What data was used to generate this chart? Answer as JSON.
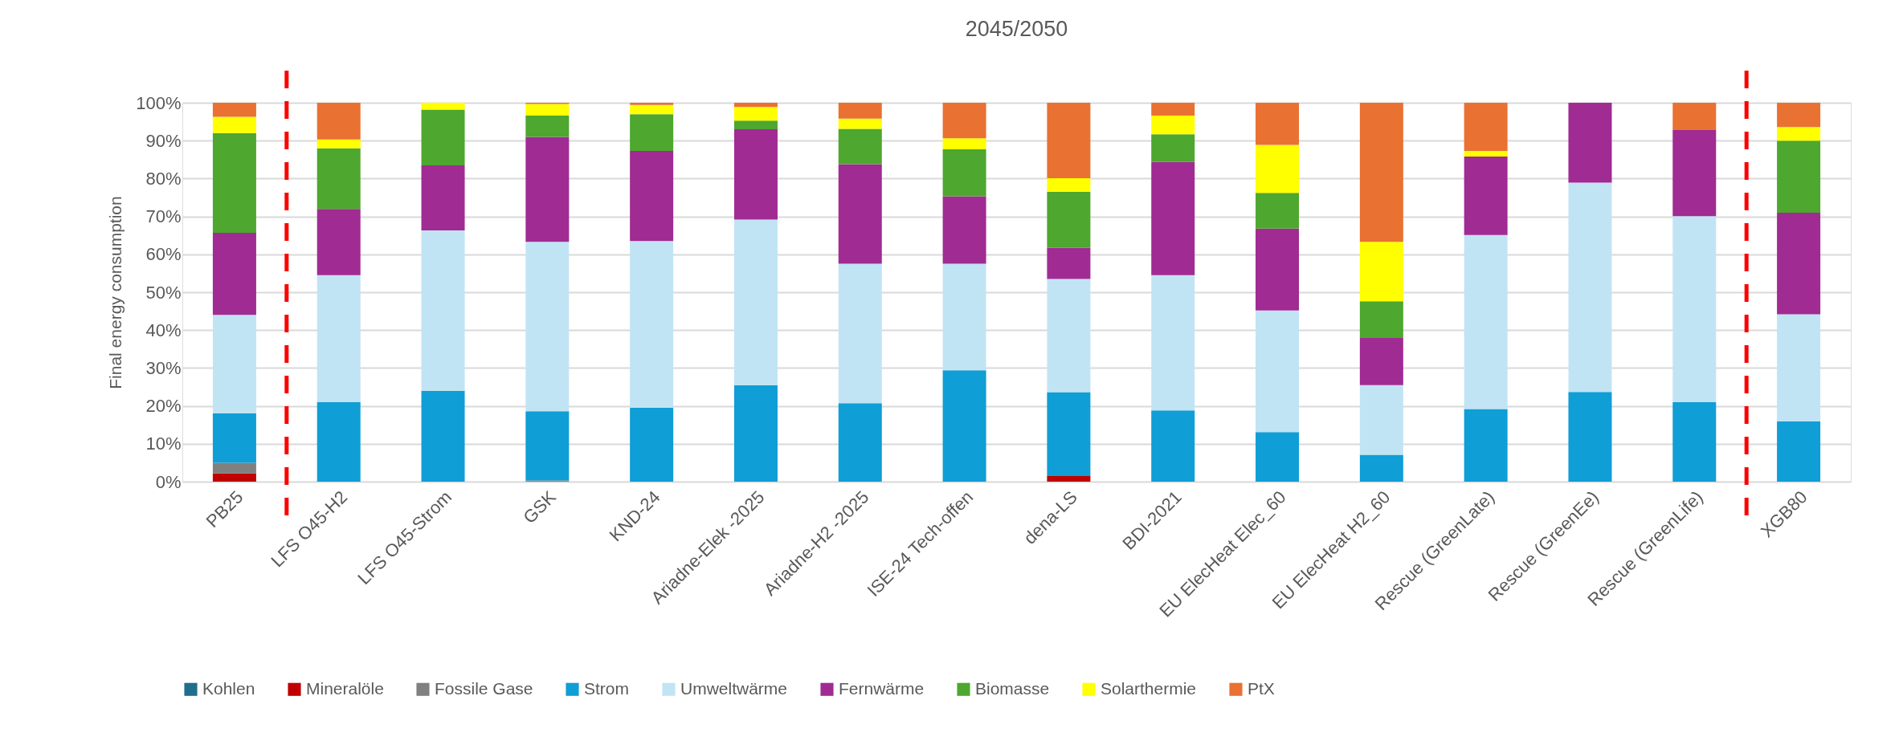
{
  "chart_data": {
    "type": "bar",
    "stacked": true,
    "title": "2045/2050",
    "ylabel": "Final energy consumption",
    "categories": [
      "PB25",
      "LFS O45-H2",
      "LFS O45-Strom",
      "GSK",
      "KND-24",
      "Ariadne-Elek -2025",
      "Ariadne-H2 -2025",
      "ISE-24 Tech-offen",
      "dena-LS",
      "BDI-2021",
      "EU ElecHeat Elec_60",
      "EU ElecHeat H2_60",
      "Rescue (GreenLate)",
      "Rescue (GreenEe)",
      "Rescue (GreenLife)",
      "XGB80"
    ],
    "series": [
      {
        "name": "Kohlen",
        "color": "#1f6e8c",
        "values": [
          0,
          0,
          0,
          0,
          0,
          0,
          0,
          0,
          0,
          0,
          0,
          0,
          0,
          0,
          0,
          0
        ]
      },
      {
        "name": "Mineralöle",
        "color": "#c00000",
        "values": [
          2.2,
          0,
          0,
          0,
          0,
          0,
          0,
          0,
          1.5,
          0,
          0,
          0,
          0,
          0,
          0,
          0
        ]
      },
      {
        "name": "Fossile Gase",
        "color": "#808080",
        "values": [
          2.8,
          0,
          0,
          0.3,
          0,
          0,
          0,
          0,
          0,
          0,
          0,
          0,
          0,
          0,
          0,
          0
        ]
      },
      {
        "name": "Strom",
        "color": "#0f9ed5",
        "values": [
          13,
          21,
          24,
          18.3,
          19.5,
          25.5,
          20.7,
          29.4,
          22.1,
          18.8,
          13.1,
          7.1,
          19.2,
          23.7,
          21,
          15.9
        ]
      },
      {
        "name": "Umweltwärme",
        "color": "#c1e4f5",
        "values": [
          26,
          33.5,
          42.3,
          44.7,
          44,
          43.7,
          36.8,
          28.1,
          29.9,
          35.7,
          32.1,
          18.4,
          45.9,
          55.2,
          49.1,
          28.3
        ]
      },
      {
        "name": "Fernwärme",
        "color": "#a02b93",
        "values": [
          21.7,
          17.5,
          17.2,
          27.7,
          23.8,
          23.8,
          26.3,
          17.8,
          8.2,
          29.9,
          21.6,
          12.4,
          20.7,
          21.1,
          22.7,
          26.8
        ]
      },
      {
        "name": "Biomasse",
        "color": "#4ea72e",
        "values": [
          26.3,
          16,
          14.7,
          5.6,
          9.7,
          2.3,
          9.3,
          12.4,
          14.8,
          7.3,
          9.4,
          9.7,
          0,
          0,
          0,
          19
        ]
      },
      {
        "name": "Solarthermie",
        "color": "#ffff00",
        "values": [
          4.3,
          2.3,
          1.8,
          3.1,
          2.4,
          3.6,
          2.7,
          2.9,
          3.6,
          4.9,
          12.7,
          15.7,
          1.5,
          0,
          0,
          3.6
        ]
      },
      {
        "name": "PtX",
        "color": "#e97132",
        "values": [
          3.7,
          9.7,
          0,
          0.3,
          0.6,
          1.1,
          4.2,
          9.4,
          19.9,
          3.4,
          11.1,
          36.7,
          12.7,
          0,
          7.2,
          6.4
        ]
      }
    ],
    "ylim": [
      0,
      100
    ],
    "yticks": [
      {
        "value": 0,
        "label": "0%"
      },
      {
        "value": 10,
        "label": "10%"
      },
      {
        "value": 20,
        "label": "20%"
      },
      {
        "value": 30,
        "label": "30%"
      },
      {
        "value": 40,
        "label": "40%"
      },
      {
        "value": 50,
        "label": "50%"
      },
      {
        "value": 60,
        "label": "60%"
      },
      {
        "value": 70,
        "label": "70%"
      },
      {
        "value": 80,
        "label": "80%"
      },
      {
        "value": 90,
        "label": "90%"
      },
      {
        "value": 100,
        "label": "100%"
      }
    ],
    "grid": "y",
    "legend": "bottom"
  }
}
